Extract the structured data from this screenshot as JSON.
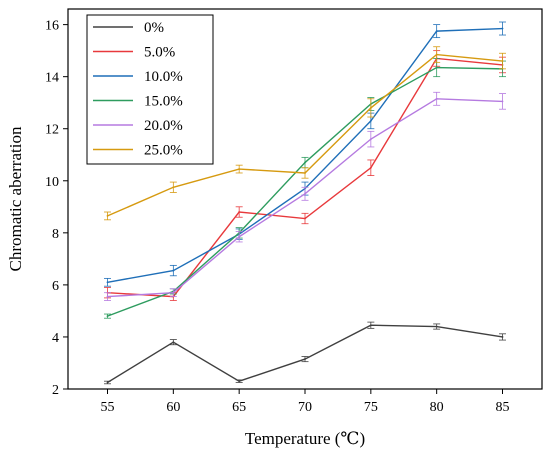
{
  "chart_data": {
    "type": "line",
    "title": "",
    "xlabel": "Temperature (℃)",
    "ylabel": "Chromatic aberration",
    "x": [
      55,
      60,
      65,
      70,
      75,
      80,
      85
    ],
    "xlim": [
      52,
      88
    ],
    "ylim": [
      2,
      16.6
    ],
    "xticks": [
      "55",
      "60",
      "65",
      "70",
      "75",
      "80",
      "85"
    ],
    "yticks": [
      "2",
      "4",
      "6",
      "8",
      "10",
      "12",
      "14",
      "16"
    ],
    "grid": false,
    "legend_position": "top-left",
    "error_bars": true,
    "series": [
      {
        "name": "0%",
        "color": "#404040",
        "values": [
          2.25,
          3.8,
          2.3,
          3.15,
          4.45,
          4.4,
          4.0
        ],
        "errors": [
          0.05,
          0.1,
          0.05,
          0.1,
          0.12,
          0.1,
          0.12
        ]
      },
      {
        "name": "5.0%",
        "color": "#e8393c",
        "values": [
          5.7,
          5.55,
          8.8,
          8.55,
          10.5,
          14.7,
          14.45
        ],
        "errors": [
          0.2,
          0.15,
          0.2,
          0.2,
          0.3,
          0.3,
          0.3
        ]
      },
      {
        "name": "10.0%",
        "color": "#1f6fb8",
        "values": [
          6.1,
          6.55,
          7.95,
          9.7,
          12.3,
          15.75,
          15.85
        ],
        "errors": [
          0.15,
          0.2,
          0.2,
          0.25,
          0.3,
          0.25,
          0.25
        ]
      },
      {
        "name": "15.0%",
        "color": "#2e9c5f",
        "values": [
          4.8,
          5.75,
          8.0,
          10.7,
          12.95,
          14.35,
          14.3
        ],
        "errors": [
          0.08,
          0.1,
          0.2,
          0.2,
          0.25,
          0.35,
          0.3
        ]
      },
      {
        "name": "20.0%",
        "color": "#b57ae0",
        "values": [
          5.55,
          5.7,
          7.85,
          9.5,
          11.6,
          13.15,
          13.05
        ],
        "errors": [
          0.15,
          0.15,
          0.2,
          0.25,
          0.3,
          0.25,
          0.3
        ]
      },
      {
        "name": "25.0%",
        "color": "#d69a10",
        "values": [
          8.65,
          9.75,
          10.45,
          10.3,
          12.8,
          14.85,
          14.6
        ],
        "errors": [
          0.15,
          0.2,
          0.15,
          0.2,
          0.35,
          0.3,
          0.3
        ]
      }
    ]
  }
}
